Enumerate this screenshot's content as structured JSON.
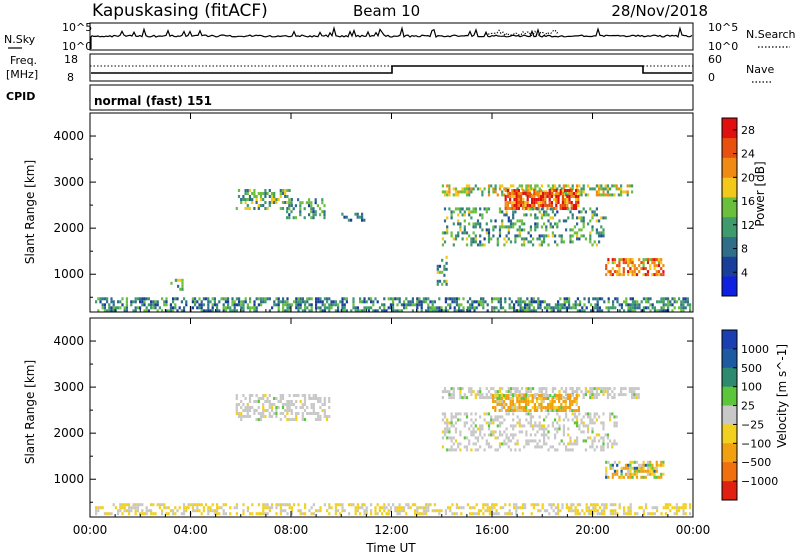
{
  "header": {
    "station": "Kapuskasing (fitACF)",
    "beam": "Beam 10",
    "date": "28/Nov/2018"
  },
  "noise_panel": {
    "left_label": "N.Sky",
    "left_ticks": [
      "10^5",
      "10^0"
    ],
    "right_label": "N.Search",
    "right_ticks": [
      "10^5",
      "10^0"
    ]
  },
  "freq_panel": {
    "label_line1": "Freq.",
    "label_line2": "[MHz]",
    "left_ticks": [
      "18",
      "8"
    ],
    "right_label": "Nave",
    "right_ticks": [
      "60",
      "0"
    ]
  },
  "cpid": {
    "label": "CPID",
    "value": "normal (fast) 151"
  },
  "colors": {
    "power_scale": [
      "#1020e0",
      "#1a3f9a",
      "#2e6e88",
      "#3f9a6c",
      "#6abf3c",
      "#f2c81a",
      "#f08a12",
      "#e8500f",
      "#e01010"
    ],
    "velocity_scale": [
      "#1a3fb0",
      "#1e5aa0",
      "#2e8a6e",
      "#5cc63a",
      "#c8c8c8",
      "#f2d020",
      "#f0a010",
      "#f07010",
      "#e02010"
    ],
    "axis": "#000000"
  },
  "chart_data": [
    {
      "type": "heatmap",
      "name": "power",
      "xlabel": "",
      "ylabel": "Slant Range [km]",
      "x_ticks": [
        "00:00",
        "04:00",
        "08:00",
        "12:00",
        "16:00",
        "20:00",
        "00:00"
      ],
      "x_range_hours": [
        0,
        24
      ],
      "y_ticks": [
        "1000",
        "2000",
        "3000",
        "4000"
      ],
      "ylim": [
        180,
        4500
      ],
      "colorbar": {
        "label": "Power [dB]",
        "ticks": [
          "4",
          "8",
          "12",
          "16",
          "20",
          "24",
          "28"
        ],
        "range": [
          0,
          30
        ]
      },
      "echo_regions": [
        {
          "t0": 0.2,
          "t1": 23.9,
          "r0": 220,
          "r1": 500,
          "value_mean": 10,
          "density": 0.55
        },
        {
          "t0": 5.8,
          "t1": 8.0,
          "r0": 2450,
          "r1": 2850,
          "value_mean": 13,
          "density": 0.5
        },
        {
          "t0": 7.8,
          "t1": 9.3,
          "r0": 2250,
          "r1": 2650,
          "value_mean": 10,
          "density": 0.4
        },
        {
          "t0": 10.0,
          "t1": 10.9,
          "r0": 2150,
          "r1": 2400,
          "value_mean": 8,
          "density": 0.3
        },
        {
          "t0": 14.0,
          "t1": 21.6,
          "r0": 2700,
          "r1": 2950,
          "value_mean": 16,
          "density": 0.55
        },
        {
          "t0": 16.5,
          "t1": 19.4,
          "r0": 2450,
          "r1": 2850,
          "value_mean": 25,
          "density": 0.8
        },
        {
          "t0": 14.0,
          "t1": 20.5,
          "r0": 1650,
          "r1": 2450,
          "value_mean": 12,
          "density": 0.3
        },
        {
          "t0": 20.5,
          "t1": 22.8,
          "r0": 1000,
          "r1": 1350,
          "value_mean": 22,
          "density": 0.6
        },
        {
          "t0": 13.8,
          "t1": 14.2,
          "r0": 800,
          "r1": 1400,
          "value_mean": 12,
          "density": 0.4
        },
        {
          "t0": 3.2,
          "t1": 3.8,
          "r0": 650,
          "r1": 900,
          "value_mean": 14,
          "density": 0.4
        }
      ]
    },
    {
      "type": "heatmap",
      "name": "velocity",
      "xlabel": "Time UT",
      "ylabel": "Slant Range [km]",
      "x_ticks": [
        "00:00",
        "04:00",
        "08:00",
        "12:00",
        "16:00",
        "20:00",
        "00:00"
      ],
      "x_range_hours": [
        0,
        24
      ],
      "y_ticks": [
        "1000",
        "2000",
        "3000",
        "4000"
      ],
      "ylim": [
        180,
        4500
      ],
      "colorbar": {
        "label": "Velocity [m s^-1]",
        "ticks": [
          "1000",
          "500",
          "100",
          "25",
          "−25",
          "−100",
          "−500",
          "−1000"
        ]
      },
      "echo_regions": [
        {
          "t0": 0.2,
          "t1": 23.9,
          "r0": 220,
          "r1": 480,
          "value_mean": -30,
          "density": 0.45
        },
        {
          "t0": 5.8,
          "t1": 9.5,
          "r0": 2300,
          "r1": 2850,
          "value_mean": 0,
          "density": 0.45
        },
        {
          "t0": 14.0,
          "t1": 21.8,
          "r0": 2750,
          "r1": 3000,
          "value_mean": 0,
          "density": 0.6
        },
        {
          "t0": 16.0,
          "t1": 19.5,
          "r0": 2500,
          "r1": 2850,
          "value_mean": -150,
          "density": 0.75
        },
        {
          "t0": 14.0,
          "t1": 21.0,
          "r0": 1650,
          "r1": 2450,
          "value_mean": 0,
          "density": 0.35
        },
        {
          "t0": 20.5,
          "t1": 22.8,
          "r0": 1050,
          "r1": 1400,
          "value_mean": -60,
          "density": 0.55
        }
      ]
    }
  ]
}
